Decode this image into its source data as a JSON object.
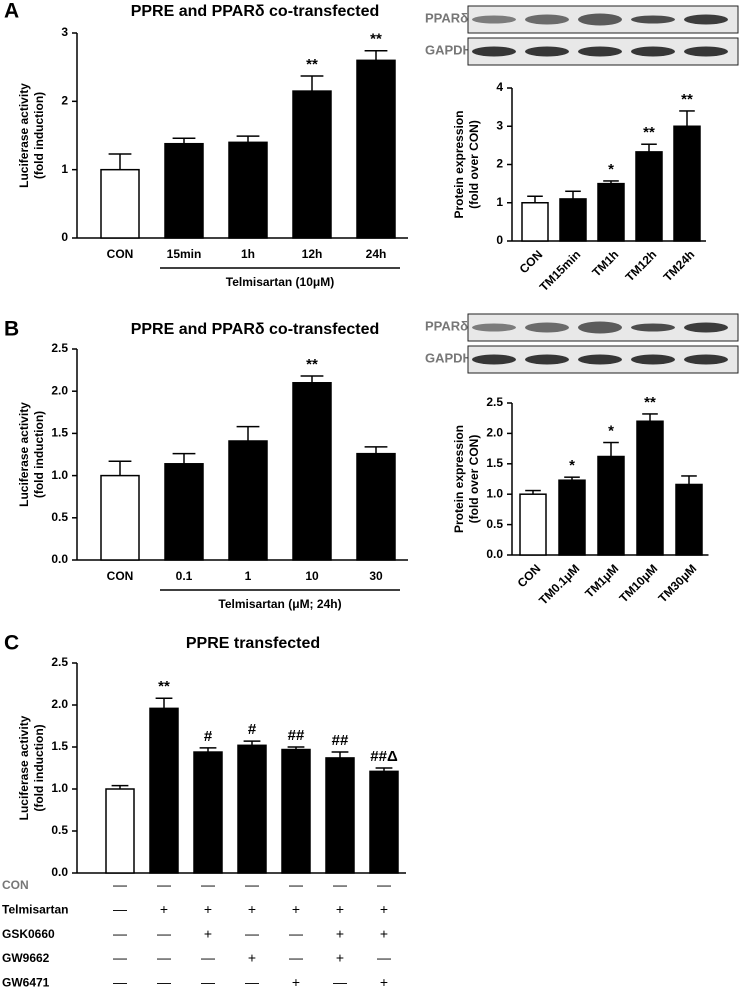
{
  "chart_data": [
    {
      "type": "bar",
      "panel_label": "A",
      "title": "PPRE and PPARδ co-transfected",
      "ylabel": [
        "Luciferase activity",
        "(fold induction)"
      ],
      "xlabel": "Telmisartan (10μM)",
      "categories": [
        "CON",
        "15min",
        "1h",
        "12h",
        "24h"
      ],
      "values": [
        1.0,
        1.38,
        1.4,
        2.15,
        2.6
      ],
      "errors": [
        0.23,
        0.08,
        0.09,
        0.22,
        0.14
      ],
      "significance": [
        null,
        null,
        null,
        "**",
        "**"
      ],
      "colors": [
        "#ffffff",
        "#000000",
        "#000000",
        "#000000",
        "#000000"
      ],
      "ylim": [
        0,
        3
      ],
      "yticks": [
        0,
        1,
        2,
        3
      ]
    },
    {
      "type": "bar",
      "blot_labels": [
        "PPARδ",
        "GAPDH"
      ],
      "ylabel": [
        "Protein expression",
        "(fold over CON)"
      ],
      "categories": [
        "CON",
        "TM15min",
        "TM1h",
        "TM12h",
        "TM24h"
      ],
      "values": [
        1.0,
        1.1,
        1.5,
        2.33,
        3.0
      ],
      "errors": [
        0.17,
        0.2,
        0.07,
        0.2,
        0.4
      ],
      "significance": [
        null,
        null,
        "*",
        "**",
        "**"
      ],
      "colors": [
        "#ffffff",
        "#000000",
        "#000000",
        "#000000",
        "#000000"
      ],
      "ylim": [
        0,
        4
      ],
      "yticks": [
        0,
        1,
        2,
        3,
        4
      ]
    },
    {
      "type": "bar",
      "panel_label": "B",
      "title": "PPRE and PPARδ co-transfected",
      "ylabel": [
        "Luciferase activity",
        "(fold induction)"
      ],
      "xlabel": "Telmisartan (μM; 24h)",
      "categories": [
        "CON",
        "0.1",
        "1",
        "10",
        "30"
      ],
      "values": [
        1.0,
        1.14,
        1.41,
        2.1,
        1.26
      ],
      "errors": [
        0.17,
        0.12,
        0.17,
        0.08,
        0.08
      ],
      "significance": [
        null,
        null,
        null,
        "**",
        null
      ],
      "colors": [
        "#ffffff",
        "#000000",
        "#000000",
        "#000000",
        "#000000"
      ],
      "ylim": [
        0,
        2.5
      ],
      "yticks": [
        {
          "value": 0,
          "label": "0.0"
        },
        0.5,
        {
          "value": 1,
          "label": "1.0"
        },
        1.5,
        {
          "value": 2,
          "label": "2.0"
        },
        2.5
      ]
    },
    {
      "type": "bar",
      "blot_labels": [
        "PPARδ",
        "GAPDH"
      ],
      "ylabel": [
        "Protein expression",
        "(fold over CON)"
      ],
      "categories": [
        "CON",
        "TM0.1μM",
        "TM1μM",
        "TM10μM",
        "TM30μM"
      ],
      "values": [
        1.0,
        1.23,
        1.62,
        2.2,
        1.16
      ],
      "errors": [
        0.06,
        0.05,
        0.23,
        0.12,
        0.14
      ],
      "significance": [
        null,
        "*",
        "*",
        "**",
        null
      ],
      "colors": [
        "#ffffff",
        "#000000",
        "#000000",
        "#000000",
        "#000000"
      ],
      "ylim": [
        0,
        2.5
      ],
      "yticks": [
        {
          "value": 0,
          "label": "0.0"
        },
        0.5,
        {
          "value": 1,
          "label": "1.0"
        },
        1.5,
        {
          "value": 2,
          "label": "2.0"
        },
        2.5
      ]
    },
    {
      "type": "bar",
      "panel_label": "C",
      "title": "PPRE transfected",
      "ylabel": [
        "Luciferase activity",
        "(fold induction)"
      ],
      "categories": [
        null,
        null,
        null,
        null,
        null,
        null,
        null
      ],
      "values": [
        1.0,
        1.96,
        1.44,
        1.52,
        1.47,
        1.37,
        1.21
      ],
      "errors": [
        0.04,
        0.12,
        0.05,
        0.05,
        0.03,
        0.07,
        0.04
      ],
      "significance": [
        null,
        "**",
        "#",
        "#",
        "##",
        "##",
        "##Δ"
      ],
      "colors": [
        "#ffffff",
        "#000000",
        "#000000",
        "#000000",
        "#000000",
        "#000000",
        "#000000"
      ],
      "ylim": [
        0,
        2.5
      ],
      "yticks": [
        {
          "value": 0,
          "label": "0.0"
        },
        0.5,
        {
          "value": 1,
          "label": "1.0"
        },
        1.5,
        {
          "value": 2,
          "label": "2.0"
        },
        2.5
      ],
      "treatments": [
        {
          "name": "CON",
          "marks": [
            "—",
            "—",
            "—",
            "—",
            "—",
            "—",
            "—"
          ]
        },
        {
          "name": "Telmisartan",
          "marks": [
            "—",
            "+",
            "+",
            "+",
            "+",
            "+",
            "+"
          ]
        },
        {
          "name": "GSK0660",
          "marks": [
            "—",
            "—",
            "+",
            "—",
            "—",
            "+",
            "+"
          ]
        },
        {
          "name": "GW9662",
          "marks": [
            "—",
            "—",
            "—",
            "+",
            "—",
            "+",
            "—"
          ]
        },
        {
          "name": "GW6471",
          "marks": [
            "—",
            "—",
            "—",
            "—",
            "+",
            "—",
            "+"
          ]
        }
      ]
    }
  ]
}
